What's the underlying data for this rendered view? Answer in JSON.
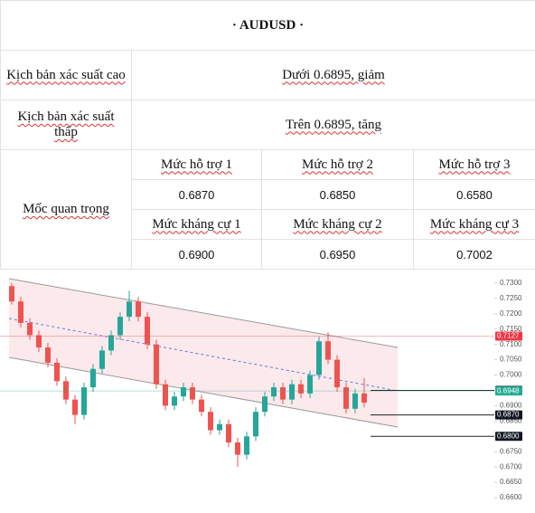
{
  "header": {
    "title": "· AUDUSD ·"
  },
  "table": {
    "rows": [
      [
        "Kịch bản xác suất cao",
        "Dưới 0.6895, giảm"
      ],
      [
        "Kịch bản xác suất thấp",
        "Trên 0.6895, tăng"
      ]
    ],
    "key_levels": {
      "label": "Mốc quan trọng",
      "support_headers": [
        "Mức hỗ trợ 1",
        "Mức hỗ trợ 2",
        "Mức hỗ trợ 3"
      ],
      "support_values": [
        "0.6870",
        "0.6850",
        "0.6580"
      ],
      "resistance_headers": [
        "Mức kháng cự 1",
        "Mức kháng cự 2",
        "Mức kháng cự 3"
      ],
      "resistance_values": [
        "0.6900",
        "0.6950",
        "0.7002"
      ]
    }
  },
  "chart": {
    "type": "candlestick",
    "ylim": [
      0.655,
      0.7338
    ],
    "yticks": [
      {
        "value": 0.73,
        "label": "0.7300"
      },
      {
        "value": 0.725,
        "label": "0.7250"
      },
      {
        "value": 0.72,
        "label": "0.7200"
      },
      {
        "value": 0.715,
        "label": "0.7150"
      },
      {
        "value": 0.71,
        "label": "0.7100"
      },
      {
        "value": 0.705,
        "label": "0.7050"
      },
      {
        "value": 0.7,
        "label": "0.7000"
      },
      {
        "value": 0.69,
        "label": "0.6900"
      },
      {
        "value": 0.685,
        "label": "0.6850"
      },
      {
        "value": 0.675,
        "label": "0.6750"
      },
      {
        "value": 0.67,
        "label": "0.6700"
      },
      {
        "value": 0.665,
        "label": "0.6650"
      },
      {
        "value": 0.66,
        "label": "0.6600"
      }
    ],
    "price_tags": [
      {
        "value": 0.7127,
        "label": "0.7127",
        "color": "#f23645"
      },
      {
        "value": 0.695,
        "label": "0.6950",
        "color": "#131722"
      },
      {
        "value": 0.6948,
        "label": "0.6948",
        "color": "#22ab94"
      },
      {
        "value": 0.687,
        "label": "0.6870",
        "color": "#131722"
      },
      {
        "value": 0.68,
        "label": "0.6800",
        "color": "#131722"
      }
    ],
    "up_color": "#26a69a",
    "down_color": "#ef5350",
    "candles": [
      [
        0.729,
        0.73,
        0.723,
        0.724
      ],
      [
        0.724,
        0.7255,
        0.7155,
        0.717
      ],
      [
        0.717,
        0.7185,
        0.7115,
        0.713
      ],
      [
        0.713,
        0.7145,
        0.7075,
        0.709
      ],
      [
        0.709,
        0.7105,
        0.7025,
        0.704
      ],
      [
        0.704,
        0.7055,
        0.6965,
        0.698
      ],
      [
        0.698,
        0.6995,
        0.6905,
        0.692
      ],
      [
        0.692,
        0.6935,
        0.684,
        0.687
      ],
      [
        0.687,
        0.6975,
        0.6855,
        0.696
      ],
      [
        0.696,
        0.7035,
        0.6945,
        0.702
      ],
      [
        0.702,
        0.7095,
        0.7005,
        0.708
      ],
      [
        0.708,
        0.7145,
        0.7065,
        0.713
      ],
      [
        0.713,
        0.7205,
        0.7115,
        0.719
      ],
      [
        0.719,
        0.7275,
        0.7175,
        0.724
      ],
      [
        0.724,
        0.7255,
        0.7175,
        0.719
      ],
      [
        0.719,
        0.7205,
        0.7085,
        0.71
      ],
      [
        0.71,
        0.7115,
        0.6955,
        0.697
      ],
      [
        0.697,
        0.6985,
        0.6885,
        0.69
      ],
      [
        0.69,
        0.6945,
        0.6885,
        0.693
      ],
      [
        0.693,
        0.6975,
        0.6915,
        0.696
      ],
      [
        0.696,
        0.6975,
        0.6905,
        0.692
      ],
      [
        0.692,
        0.6935,
        0.6865,
        0.688
      ],
      [
        0.688,
        0.6895,
        0.6805,
        0.682
      ],
      [
        0.682,
        0.6855,
        0.6805,
        0.684
      ],
      [
        0.684,
        0.6855,
        0.6765,
        0.678
      ],
      [
        0.678,
        0.6795,
        0.67,
        0.674
      ],
      [
        0.674,
        0.6815,
        0.6725,
        0.68
      ],
      [
        0.68,
        0.6895,
        0.6785,
        0.688
      ],
      [
        0.688,
        0.6945,
        0.6865,
        0.693
      ],
      [
        0.693,
        0.6975,
        0.6915,
        0.696
      ],
      [
        0.696,
        0.6975,
        0.6905,
        0.692
      ],
      [
        0.692,
        0.6985,
        0.6905,
        0.697
      ],
      [
        0.697,
        0.6985,
        0.6925,
        0.694
      ],
      [
        0.694,
        0.7015,
        0.6925,
        0.7
      ],
      [
        0.7,
        0.7125,
        0.6985,
        0.711
      ],
      [
        0.711,
        0.714,
        0.7035,
        0.705
      ],
      [
        0.705,
        0.7065,
        0.6945,
        0.696
      ],
      [
        0.696,
        0.6975,
        0.6875,
        0.689
      ],
      [
        0.689,
        0.6955,
        0.6875,
        0.694
      ],
      [
        0.694,
        0.699,
        0.6895,
        0.691
      ]
    ]
  }
}
